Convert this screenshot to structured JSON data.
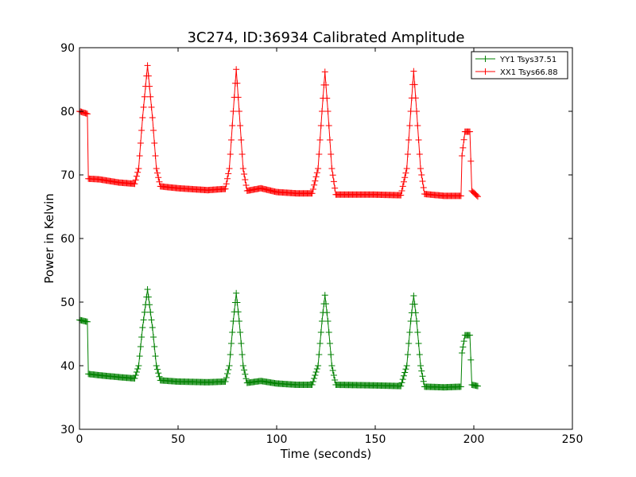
{
  "chart_data": {
    "type": "line",
    "title": "3C274, ID:36934 Calibrated Amplitude",
    "xlabel": "Time (seconds)",
    "ylabel": "Power in Kelvin",
    "xlim": [
      0,
      250
    ],
    "ylim": [
      30,
      90
    ],
    "xticks": [
      "0",
      "50",
      "100",
      "150",
      "200",
      "250"
    ],
    "yticks": [
      "30",
      "40",
      "50",
      "60",
      "70",
      "80",
      "90"
    ],
    "grid": false,
    "legend_position": "top-right",
    "marker": "+",
    "series": [
      {
        "name": "YY1 Tsys37.51",
        "color": "#008000",
        "base_points": [
          [
            0,
            47.2
          ],
          [
            4,
            46.9
          ],
          [
            4.5,
            38.7
          ],
          [
            10,
            38.5
          ],
          [
            20,
            38.2
          ],
          [
            28,
            38.0
          ],
          [
            30,
            40.0
          ],
          [
            32,
            46.0
          ],
          [
            34.5,
            52.0
          ],
          [
            37,
            46.0
          ],
          [
            39,
            40.0
          ],
          [
            41,
            37.7
          ],
          [
            50,
            37.5
          ],
          [
            65,
            37.4
          ],
          [
            74,
            37.5
          ],
          [
            76,
            40.0
          ],
          [
            78,
            47.0
          ],
          [
            79.5,
            51.4
          ],
          [
            81,
            47.0
          ],
          [
            83,
            40.0
          ],
          [
            85,
            37.3
          ],
          [
            92,
            37.6
          ],
          [
            100,
            37.2
          ],
          [
            110,
            37.0
          ],
          [
            118,
            37.0
          ],
          [
            121,
            40.0
          ],
          [
            123,
            47.0
          ],
          [
            124.5,
            51.1
          ],
          [
            126,
            47.0
          ],
          [
            128,
            40.0
          ],
          [
            130,
            37.0
          ],
          [
            150,
            36.9
          ],
          [
            163,
            36.8
          ],
          [
            166,
            40.0
          ],
          [
            168,
            47.0
          ],
          [
            169.5,
            51.0
          ],
          [
            171,
            47.0
          ],
          [
            173,
            40.0
          ],
          [
            175,
            36.7
          ],
          [
            185,
            36.6
          ],
          [
            193.5,
            36.7
          ],
          [
            194,
            42.0
          ],
          [
            195.5,
            44.8
          ],
          [
            198,
            44.8
          ],
          [
            199,
            37.0
          ],
          [
            202,
            36.8
          ]
        ]
      },
      {
        "name": "XX1 Tsys66.88",
        "color": "#ff0000",
        "base_points": [
          [
            0,
            80.0
          ],
          [
            4,
            79.6
          ],
          [
            4.5,
            69.4
          ],
          [
            10,
            69.3
          ],
          [
            20,
            68.8
          ],
          [
            28,
            68.6
          ],
          [
            30,
            71.0
          ],
          [
            32,
            79.0
          ],
          [
            34.5,
            87.2
          ],
          [
            37,
            79.0
          ],
          [
            39,
            71.0
          ],
          [
            41,
            68.2
          ],
          [
            50,
            67.9
          ],
          [
            65,
            67.6
          ],
          [
            74,
            67.8
          ],
          [
            76,
            71.0
          ],
          [
            78,
            80.0
          ],
          [
            79.5,
            86.6
          ],
          [
            81,
            80.0
          ],
          [
            83,
            71.0
          ],
          [
            85,
            67.5
          ],
          [
            92,
            67.9
          ],
          [
            100,
            67.3
          ],
          [
            110,
            67.1
          ],
          [
            118,
            67.1
          ],
          [
            121,
            71.0
          ],
          [
            123,
            80.0
          ],
          [
            124.5,
            86.2
          ],
          [
            126,
            80.0
          ],
          [
            128,
            71.0
          ],
          [
            130,
            66.9
          ],
          [
            150,
            66.9
          ],
          [
            163,
            66.8
          ],
          [
            166,
            71.0
          ],
          [
            168,
            80.0
          ],
          [
            169.5,
            86.3
          ],
          [
            171,
            80.0
          ],
          [
            173,
            71.0
          ],
          [
            175,
            67.0
          ],
          [
            185,
            66.7
          ],
          [
            193.5,
            66.7
          ],
          [
            194,
            73.0
          ],
          [
            195.5,
            76.8
          ],
          [
            198,
            76.8
          ],
          [
            199,
            67.5
          ],
          [
            202,
            66.6
          ]
        ]
      }
    ]
  }
}
